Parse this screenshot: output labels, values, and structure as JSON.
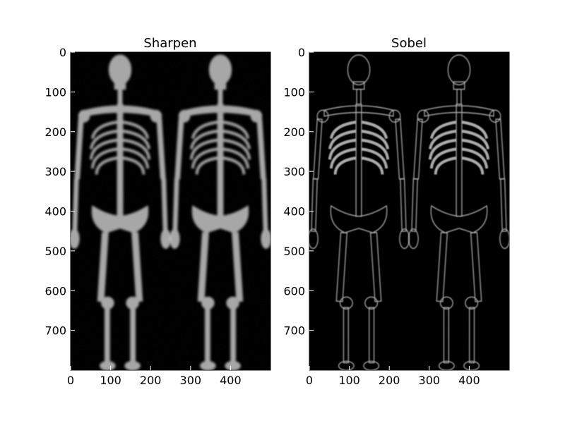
{
  "figure": {
    "background": "#ffffff",
    "panel_background": "#000000",
    "bone_color": "#ffffff",
    "edge_color": "#dddddd",
    "panels": [
      {
        "title": "Sharpen",
        "filter": "sharpen",
        "xlim": [
          0,
          500
        ],
        "ylim": [
          0,
          800
        ],
        "xticks": [
          {
            "value": 0,
            "label": "0"
          },
          {
            "value": 100,
            "label": "100"
          },
          {
            "value": 200,
            "label": "200"
          },
          {
            "value": 300,
            "label": "300"
          },
          {
            "value": 400,
            "label": "400"
          }
        ],
        "yticks": [
          {
            "value": 0,
            "label": "0"
          },
          {
            "value": 100,
            "label": "100"
          },
          {
            "value": 200,
            "label": "200"
          },
          {
            "value": 300,
            "label": "300"
          },
          {
            "value": 400,
            "label": "400"
          },
          {
            "value": 500,
            "label": "500"
          },
          {
            "value": 600,
            "label": "600"
          },
          {
            "value": 700,
            "label": "700"
          }
        ]
      },
      {
        "title": "Sobel",
        "filter": "sobel",
        "xlim": [
          0,
          500
        ],
        "ylim": [
          0,
          800
        ],
        "xticks": [
          {
            "value": 0,
            "label": "0"
          },
          {
            "value": 100,
            "label": "100"
          },
          {
            "value": 200,
            "label": "200"
          },
          {
            "value": 300,
            "label": "300"
          },
          {
            "value": 400,
            "label": "400"
          }
        ],
        "yticks": [
          {
            "value": 0,
            "label": "0"
          },
          {
            "value": 100,
            "label": "100"
          },
          {
            "value": 200,
            "label": "200"
          },
          {
            "value": 300,
            "label": "300"
          },
          {
            "value": 400,
            "label": "400"
          },
          {
            "value": 500,
            "label": "500"
          },
          {
            "value": 600,
            "label": "600"
          },
          {
            "value": 700,
            "label": "700"
          }
        ]
      }
    ]
  }
}
